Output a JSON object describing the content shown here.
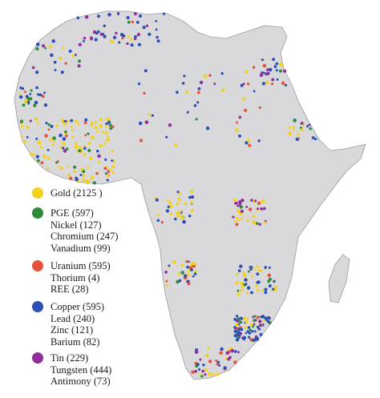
{
  "legend": {
    "groups": [
      {
        "color": "#f2d21c",
        "items": [
          "Gold (2125 )"
        ]
      },
      {
        "color": "#2e8b3a",
        "items": [
          "PGE (597)",
          "Nickel (127)",
          "Chromium (247)",
          "Vanadium (99)"
        ]
      },
      {
        "color": "#e5533c",
        "items": [
          "Uranium (595)",
          "Thorium (4)",
          "REE (28)"
        ]
      },
      {
        "color": "#2b4fb3",
        "items": [
          "Copper (595)",
          "Lead (240)",
          "Zinc (121)",
          "Barium (82)"
        ]
      },
      {
        "color": "#8e2f9c",
        "items": [
          "Tin (229)",
          "Tungsten (444)",
          "Antimony (73)"
        ]
      }
    ]
  },
  "map_colors": {
    "land": "#d9d9dc",
    "outline": "#9a9aa2"
  }
}
